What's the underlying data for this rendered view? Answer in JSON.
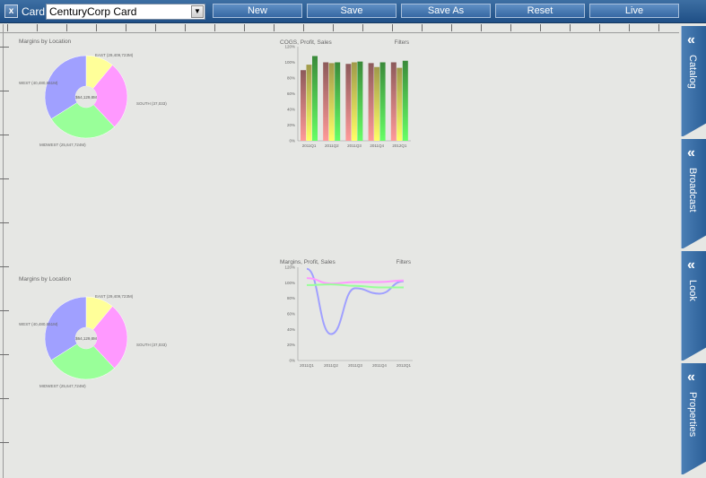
{
  "toolbar": {
    "close_glyph": "x",
    "card_label": "Card:",
    "card_value": "CenturyCorp Card",
    "dropdown_glyph": "▼",
    "buttons": {
      "new": "New",
      "save": "Save",
      "save_as": "Save As",
      "reset": "Reset",
      "live": "Live"
    }
  },
  "side_tabs": [
    {
      "label": "Catalog",
      "glyph": "«"
    },
    {
      "label": "Broadcast",
      "glyph": "«"
    },
    {
      "label": "Look",
      "glyph": "«"
    },
    {
      "label": "Properties",
      "glyph": "«"
    }
  ],
  "colors": {
    "toolbar": "#2a5a91",
    "pie_west": "#a0a0ff",
    "pie_east": "#ffff99",
    "pie_south": "#ff99ff",
    "pie_midwest": "#99ff99"
  },
  "chart_data": [
    {
      "type": "pie",
      "title": "Margins by Location",
      "center_label": "$64,129,8M",
      "slices": [
        {
          "name": "EAST (29,409,723M)",
          "value": 11
        },
        {
          "name": "SOUTH (37,033)",
          "value": 27
        },
        {
          "name": "MIDWEST (25,647,724M)",
          "value": 28
        },
        {
          "name": "WEST (40,480,651M)",
          "value": 34
        }
      ]
    },
    {
      "type": "bar",
      "title": "COGS, Profit, Sales",
      "filter_label": "Filters",
      "categories": [
        "2011Q1",
        "2011Q2",
        "2011Q3",
        "2011Q4",
        "2012Q1"
      ],
      "ylim": [
        0,
        120
      ],
      "yticks": [
        "0%",
        "20%",
        "40%",
        "60%",
        "80%",
        "100%",
        "120%"
      ],
      "series": [
        {
          "values": [
            90,
            100,
            98,
            99,
            100
          ]
        },
        {
          "values": [
            97,
            99,
            100,
            94,
            93
          ]
        },
        {
          "values": [
            108,
            100,
            101,
            100,
            102
          ]
        }
      ]
    },
    {
      "type": "pie",
      "title": "Margins by Location",
      "center_label": "$64,129,8M",
      "slices": [
        {
          "name": "EAST (29,409,723M)",
          "value": 11
        },
        {
          "name": "SOUTH (37,033)",
          "value": 27
        },
        {
          "name": "MIDWEST (25,647,724M)",
          "value": 28
        },
        {
          "name": "WEST (40,480,651M)",
          "value": 34
        }
      ]
    },
    {
      "type": "line",
      "title": "Margins, Profit, Sales",
      "filter_label": "Filters",
      "categories": [
        "2011Q1",
        "2011Q2",
        "2011Q3",
        "2011Q4",
        "2012Q1"
      ],
      "ylim": [
        0,
        120
      ],
      "yticks": [
        "0%",
        "20%",
        "40%",
        "60%",
        "80%",
        "100%",
        "120%"
      ],
      "series": [
        {
          "color": "#a0a0ff",
          "values": [
            118,
            34,
            93,
            86,
            102
          ]
        },
        {
          "color": "#ff99ff",
          "values": [
            106,
            99,
            101,
            101,
            103
          ]
        },
        {
          "color": "#99ff99",
          "values": [
            97,
            98,
            96,
            94,
            94
          ]
        }
      ]
    }
  ]
}
